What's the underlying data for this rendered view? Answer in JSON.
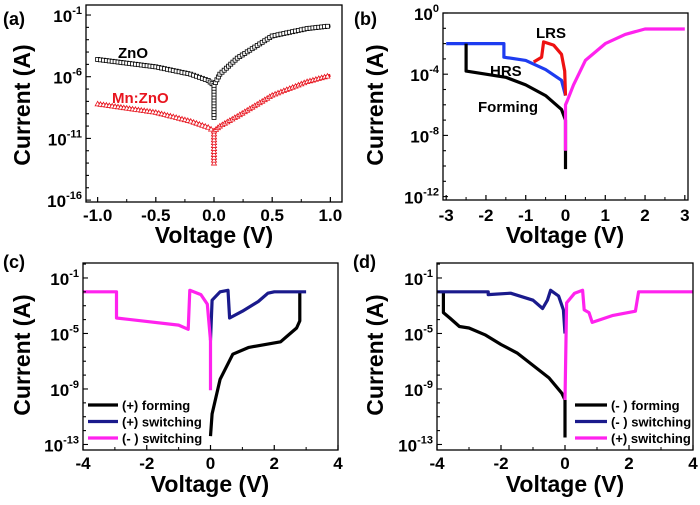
{
  "chart_data": [
    {
      "panel_label": "(a)",
      "type": "line",
      "xlabel": "Voltage (V)",
      "ylabel": "Current (A)",
      "xscale": "linear",
      "yscale": "log",
      "xlim": [
        -1.1,
        1.1
      ],
      "ylim": [
        7e-17,
        0.65
      ],
      "xticks": [
        -1.0,
        -0.5,
        0.0,
        0.5,
        1.0
      ],
      "xtick_labels": [
        "-1.0",
        "-0.5",
        "0.0",
        "0.5",
        "1.0"
      ],
      "yticks_exp": [
        -1,
        -6,
        -11,
        -16
      ],
      "grid": false,
      "annotations": [
        {
          "text": "ZnO",
          "color": "#000000"
        },
        {
          "text": "Mn:ZnO",
          "color": "#e8141e"
        }
      ],
      "series": [
        {
          "label": "ZnO",
          "color": "#000000",
          "marker": "square",
          "x": [
            -1,
            -0.5,
            -0.2,
            -0.05,
            0,
            0,
            0,
            0.05,
            0.2,
            0.5,
            0.8,
            1
          ],
          "y": [
            2.5e-05,
            6.3e-06,
            1.6e-06,
            5e-07,
            2e-07,
            5e-10,
            2e-07,
            1.6e-06,
            3.2e-05,
            0.002,
            0.008,
            0.013
          ]
        },
        {
          "label": "Mn:ZnO",
          "color": "#e8141e",
          "marker": "triangle",
          "x": [
            -1,
            -0.5,
            -0.2,
            -0.05,
            0,
            0,
            0,
            0.05,
            0.2,
            0.5,
            0.8,
            1
          ],
          "y": [
            6.3e-09,
            1.3e-09,
            2.5e-10,
            8e-11,
            4e-11,
            1e-13,
            4e-11,
            1e-10,
            6.3e-10,
            3.2e-08,
            4e-07,
            1.3e-06
          ]
        }
      ]
    },
    {
      "panel_label": "(b)",
      "type": "line",
      "xlabel": "Voltage (V)",
      "ylabel": "Current (A)",
      "xscale": "linear",
      "yscale": "log",
      "xlim": [
        -3.08,
        3.08
      ],
      "ylim": [
        6e-13,
        1
      ],
      "xticks": [
        -3,
        -2,
        -1,
        0,
        1,
        2,
        3
      ],
      "xtick_labels": [
        "-3",
        "-2",
        "-1",
        "0",
        "1",
        "2",
        "3"
      ],
      "yticks_exp": [
        0,
        -4,
        -8,
        -12
      ],
      "grid": false,
      "annotations": [
        {
          "text": "LRS",
          "color": "#000000"
        },
        {
          "text": "HRS",
          "color": "#000000"
        },
        {
          "text": "Forming",
          "color": "#000000"
        }
      ],
      "series": [
        {
          "label": "HRS",
          "color": "#1e3cf0",
          "x": [
            -3,
            -1.55,
            -1.55,
            -1,
            -0.5,
            -0.1,
            0
          ],
          "y": [
            0.01,
            0.01,
            0.0013,
            0.0008,
            0.0002,
            4e-05,
            4e-06
          ]
        },
        {
          "label": "Forming",
          "color": "#000000",
          "x": [
            -2.5,
            -2.5,
            -2,
            -1.5,
            -1,
            -0.5,
            -0.1,
            0,
            0
          ],
          "y": [
            0.01,
            0.00016,
            0.0001,
            6.3e-05,
            2e-05,
            4e-06,
            5e-07,
            1e-07,
            6.3e-11
          ]
        },
        {
          "label": "LRS",
          "color": "#ee1111",
          "x": [
            -0.8,
            -0.6,
            -0.55,
            -0.3,
            -0.1,
            -0.02,
            0
          ],
          "y": [
            0.00063,
            0.0013,
            0.013,
            0.008,
            0.002,
            0.00016,
            4e-06
          ]
        },
        {
          "label": "",
          "color": "#ff22ee",
          "x": [
            0,
            0,
            0.05,
            0.2,
            0.5,
            1,
            1.5,
            2,
            3
          ],
          "y": [
            1e-09,
            1e-06,
            2e-06,
            2e-05,
            0.0008,
            0.01,
            0.04,
            0.09,
            0.09
          ]
        }
      ]
    },
    {
      "panel_label": "(c)",
      "type": "line",
      "xlabel": "Voltage (V)",
      "ylabel": "Current (A)",
      "xscale": "linear",
      "yscale": "log",
      "xlim": [
        -4,
        4
      ],
      "ylim": [
        4e-14,
        1.2
      ],
      "xticks": [
        -4,
        -2,
        0,
        2,
        4
      ],
      "xtick_labels": [
        "-4",
        "-2",
        "0",
        "2",
        "4"
      ],
      "yticks_exp": [
        -1,
        -5,
        -9,
        -13
      ],
      "grid": false,
      "legend": "bottom-left",
      "series": [
        {
          "name": "(+) forming",
          "color": "#000000",
          "x": [
            0,
            0.05,
            0.3,
            0.7,
            1.2,
            2.2,
            2.5,
            2.7,
            2.8,
            2.8
          ],
          "y": [
            4e-13,
            1.6e-11,
            5e-09,
            3.2e-07,
            1e-06,
            2.5e-06,
            1e-05,
            2.5e-05,
            8e-05,
            0.01
          ]
        },
        {
          "name": "(+) switching",
          "color": "#1a1a8c",
          "x": [
            0,
            0.05,
            0.3,
            0.55,
            0.6,
            1,
            1.5,
            1.8,
            2,
            3
          ],
          "y": [
            3.2e-06,
            0.0025,
            0.01,
            0.013,
            0.00013,
            0.0004,
            0.002,
            0.008,
            0.01,
            0.01
          ]
        },
        {
          "name": "(- ) switching",
          "color": "#ff22ee",
          "x": [
            -4,
            -2.95,
            -2.95,
            -1,
            -0.7,
            -0.65,
            -0.3,
            -0.1,
            0,
            0
          ],
          "y": [
            0.01,
            0.01,
            0.00013,
            4e-05,
            2e-05,
            0.013,
            0.0063,
            0.0013,
            3.2e-06,
            8e-10
          ]
        }
      ]
    },
    {
      "panel_label": "(d)",
      "type": "line",
      "xlabel": "Voltage (V)",
      "ylabel": "Current (A)",
      "xscale": "linear",
      "yscale": "log",
      "xlim": [
        -4,
        4
      ],
      "ylim": [
        4e-14,
        1.2
      ],
      "xticks": [
        -4,
        -2,
        0,
        2,
        4
      ],
      "xtick_labels": [
        "-4",
        "-2",
        "0",
        "2",
        "4"
      ],
      "yticks_exp": [
        -1,
        -5,
        -9,
        -13
      ],
      "grid": false,
      "legend": "bottom-right",
      "series": [
        {
          "name": "(- ) forming",
          "color": "#000000",
          "x": [
            0,
            0,
            -0.1,
            -0.5,
            -1,
            -1.5,
            -2,
            -2.5,
            -3,
            -3.3,
            -3.6,
            -3.8,
            -3.8
          ],
          "y": [
            3.2e-13,
            1.6e-10,
            5e-10,
            6.3e-09,
            5e-08,
            4e-07,
            1.6e-06,
            8e-06,
            2.5e-05,
            3.2e-05,
            0.00013,
            0.00032,
            0.01
          ]
        },
        {
          "name": "(- ) switching",
          "color": "#1a1a8c",
          "x": [
            -4,
            -2.4,
            -2.4,
            -1.7,
            -1,
            -0.7,
            -0.55,
            -0.45,
            -0.2,
            -0.05,
            0
          ],
          "y": [
            0.01,
            0.01,
            0.0063,
            0.008,
            0.0025,
            0.00063,
            0.0025,
            0.013,
            0.005,
            0.0005,
            1e-05
          ]
        },
        {
          "name": "(+) switching",
          "color": "#ff22ee",
          "x": [
            0,
            0.05,
            0.3,
            0.55,
            0.6,
            0.75,
            0.85,
            1.5,
            2.2,
            2.3,
            4
          ],
          "y": [
            1.6e-10,
            0.0016,
            0.008,
            0.013,
            0.0005,
            0.00032,
            6.3e-05,
            0.0002,
            0.0004,
            0.01,
            0.01
          ]
        }
      ]
    }
  ]
}
